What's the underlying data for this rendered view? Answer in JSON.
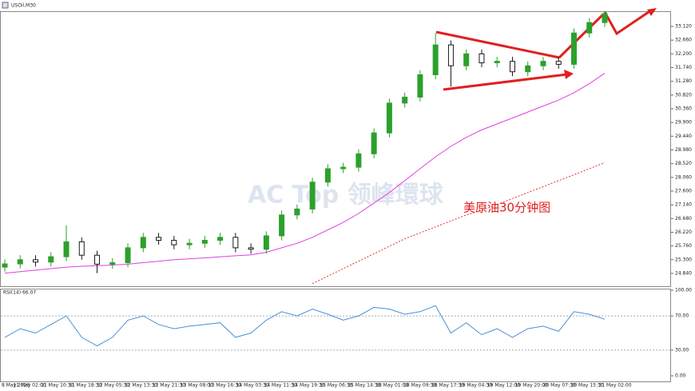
{
  "chart_data": {
    "type": "candlestick",
    "title": "USOil,M30",
    "annotation": "美原油30分钟图",
    "watermark": "AC Top 领峰環球",
    "up_color": "#2ca02c",
    "down_color": "#1a1a1a",
    "open": [
      25.05,
      25.16,
      25.3,
      25.22,
      25.4,
      25.9,
      25.45,
      25.15,
      25.2,
      25.7,
      26.05,
      25.95,
      25.8,
      25.85,
      25.95,
      26.05,
      25.7,
      25.65,
      26.1,
      26.8,
      27.0,
      27.9,
      28.35,
      28.4,
      28.85,
      29.55,
      30.55,
      30.75,
      31.5,
      32.5,
      31.8,
      32.2,
      31.9,
      31.95,
      31.6,
      31.8,
      31.95,
      31.85,
      32.9,
      33.25
    ],
    "high": [
      25.31,
      25.45,
      25.45,
      25.55,
      26.45,
      26.05,
      25.6,
      25.35,
      25.85,
      26.2,
      26.2,
      26.1,
      26.0,
      26.1,
      26.2,
      26.2,
      25.85,
      26.25,
      26.95,
      27.15,
      28.05,
      28.5,
      28.55,
      29.0,
      29.7,
      30.7,
      30.9,
      31.65,
      32.9,
      32.65,
      32.35,
      32.35,
      32.1,
      32.1,
      31.95,
      32.1,
      32.1,
      33.05,
      33.4,
      33.62
    ],
    "low": [
      24.9,
      25.01,
      25.07,
      25.07,
      25.25,
      25.3,
      24.85,
      25.0,
      25.05,
      25.55,
      25.8,
      25.65,
      25.65,
      25.7,
      25.8,
      25.55,
      25.5,
      25.5,
      25.95,
      26.65,
      26.85,
      27.75,
      28.2,
      28.25,
      28.7,
      29.4,
      30.4,
      30.6,
      31.35,
      31.1,
      31.65,
      31.75,
      31.75,
      31.45,
      31.45,
      31.65,
      31.7,
      31.7,
      32.75,
      33.1
    ],
    "close": [
      25.16,
      25.3,
      25.22,
      25.4,
      25.9,
      25.45,
      25.15,
      25.2,
      25.7,
      26.05,
      25.95,
      25.8,
      25.85,
      25.95,
      26.05,
      25.7,
      25.65,
      26.1,
      26.8,
      27.0,
      27.9,
      28.35,
      28.4,
      28.85,
      29.55,
      30.55,
      30.75,
      31.5,
      32.5,
      31.8,
      32.2,
      31.9,
      31.95,
      31.6,
      31.8,
      31.95,
      31.85,
      32.9,
      33.25,
      33.55
    ],
    "series": [
      {
        "color": "#e040e0",
        "style": "solid",
        "values": [
          24.85,
          24.9,
          24.95,
          25.0,
          25.05,
          25.08,
          25.1,
          25.12,
          25.15,
          25.2,
          25.25,
          25.3,
          25.33,
          25.36,
          25.4,
          25.43,
          25.46,
          25.55,
          25.7,
          25.85,
          26.05,
          26.3,
          26.55,
          26.85,
          27.2,
          27.55,
          27.95,
          28.35,
          28.75,
          29.1,
          29.4,
          29.65,
          29.85,
          30.05,
          30.25,
          30.45,
          30.65,
          30.9,
          31.2,
          31.55
        ]
      },
      {
        "color": "#e03030",
        "style": "dotted",
        "values": [
          null,
          null,
          null,
          null,
          null,
          null,
          null,
          null,
          null,
          null,
          null,
          null,
          null,
          null,
          null,
          null,
          null,
          null,
          null,
          null,
          24.5,
          24.75,
          25.0,
          25.25,
          25.5,
          25.75,
          26.0,
          26.2,
          26.4,
          26.6,
          26.8,
          26.95,
          27.15,
          27.35,
          27.55,
          27.75,
          27.95,
          28.15,
          28.35,
          28.55
        ]
      }
    ],
    "ylim": [
      24.41,
      33.63
    ],
    "yticks": [
      {
        "value": 33.12,
        "label": "33.120"
      },
      {
        "value": 32.66,
        "label": "32.660"
      },
      {
        "value": 32.2,
        "label": "32.200"
      },
      {
        "value": 31.74,
        "label": "31.740"
      },
      {
        "value": 31.28,
        "label": "31.280"
      },
      {
        "value": 30.82,
        "label": "30.820"
      },
      {
        "value": 30.36,
        "label": "30.360"
      },
      {
        "value": 29.9,
        "label": "29.900"
      },
      {
        "value": 29.44,
        "label": "29.440"
      },
      {
        "value": 28.98,
        "label": "28.980"
      },
      {
        "value": 28.52,
        "label": "28.520"
      },
      {
        "value": 28.06,
        "label": "28.060"
      },
      {
        "value": 27.6,
        "label": "27.600"
      },
      {
        "value": 27.14,
        "label": "27.140"
      },
      {
        "value": 26.68,
        "label": "26.680"
      },
      {
        "value": 26.22,
        "label": "26.220"
      },
      {
        "value": 25.76,
        "label": "25.760"
      },
      {
        "value": 25.3,
        "label": "25.300"
      },
      {
        "value": 24.84,
        "label": "24.840"
      }
    ],
    "time_labels": [
      "8 May 2020",
      "11 May 02:00",
      "11 May 10:30",
      "11 May 18:30",
      "12 May 05:30",
      "12 May 13:30",
      "12 May 21:30",
      "13 May 08:00",
      "13 May 16:30",
      "14 May 03:30",
      "14 May 11:30",
      "14 May 19:30",
      "15 May 06:30",
      "15 May 14:30",
      "18 May 01:00",
      "18 May 09:30",
      "18 May 17:30",
      "19 May 04:30",
      "19 May 12:00",
      "19 May 20:00",
      "20 May 07:30",
      "20 May 15:30",
      "21 May 02:00"
    ],
    "rsi": {
      "title": "RSI(14) 66.07",
      "color": "#4a90d9",
      "values": [
        45,
        55,
        50,
        60,
        70,
        45,
        35,
        45,
        65,
        70,
        60,
        55,
        58,
        60,
        62,
        45,
        50,
        65,
        75,
        70,
        78,
        72,
        65,
        70,
        80,
        78,
        72,
        75,
        82,
        50,
        62,
        48,
        55,
        45,
        55,
        58,
        52,
        75,
        72,
        66.07
      ],
      "ylim": [
        0,
        100
      ],
      "yticks": [
        {
          "value": 100,
          "label": "100.00"
        },
        {
          "value": 70,
          "label": "70.00"
        },
        {
          "value": 30,
          "label": "30.00"
        },
        {
          "value": 0,
          "label": "0.00"
        }
      ],
      "levels": [
        70,
        30
      ]
    }
  }
}
